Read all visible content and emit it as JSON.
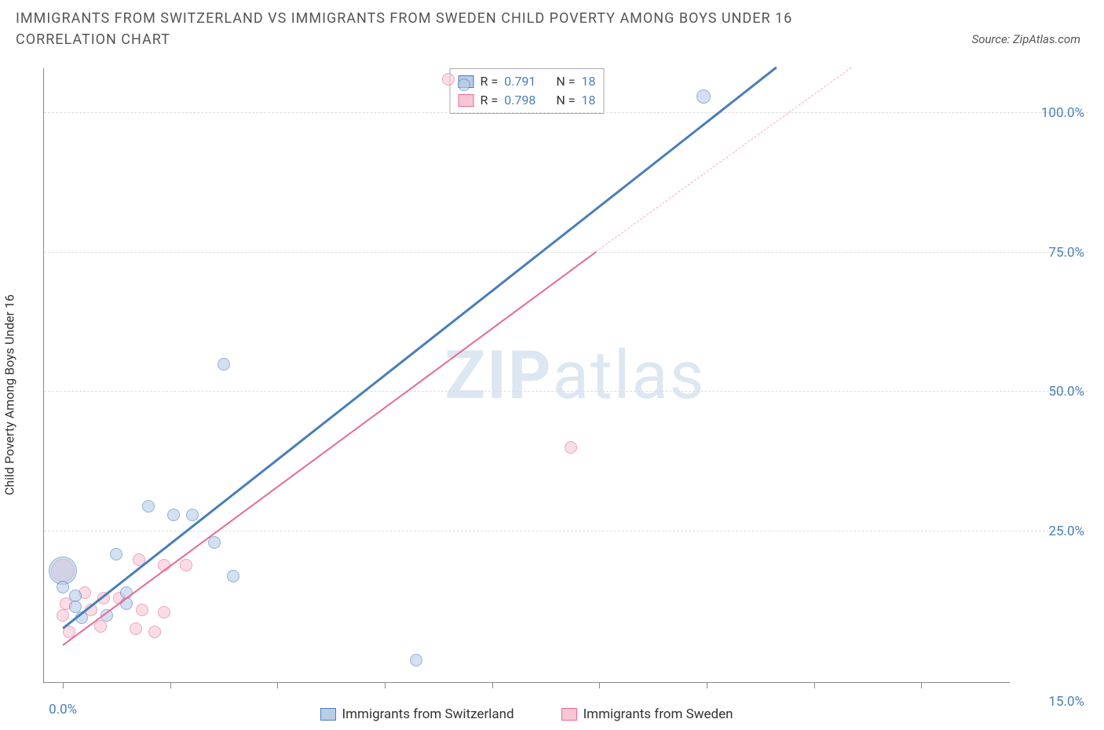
{
  "title": "IMMIGRANTS FROM SWITZERLAND VS IMMIGRANTS FROM SWEDEN CHILD POVERTY AMONG BOYS UNDER 16 CORRELATION CHART",
  "source": "Source: ZipAtlas.com",
  "yaxis_label": "Child Poverty Among Boys Under 16",
  "watermark": {
    "bold": "ZIP",
    "rest": "atlas"
  },
  "colors": {
    "blue_stroke": "#4a7ebb",
    "blue_fill": "#b8cde8",
    "pink_stroke": "#e86a92",
    "pink_fill": "#f7c6d4",
    "grid": "#dddddd",
    "axis": "#888888",
    "title_text": "#555555",
    "tick_text": "#4a7ebb",
    "bg": "#ffffff"
  },
  "chart": {
    "type": "scatter",
    "xlim": [
      -0.3,
      15.0
    ],
    "ylim": [
      -2,
      108
    ],
    "xtick_positions": [
      0.0,
      1.7,
      3.4,
      5.1,
      6.8,
      8.5,
      10.2,
      11.9,
      13.6
    ],
    "xtick_labels": [
      "0.0%",
      "",
      "",
      "",
      "",
      "",
      "",
      "",
      ""
    ],
    "xlabel_far_right": "15.0%",
    "ytick_positions": [
      25,
      50,
      75,
      100
    ],
    "ytick_labels": [
      "25.0%",
      "50.0%",
      "75.0%",
      "100.0%"
    ],
    "series": [
      {
        "name": "Immigrants from Switzerland",
        "color_stroke": "#4a7ebb",
        "color_fill": "#b8cde8",
        "marker_radius": 8,
        "stats": {
          "R": "0.791",
          "N": "18"
        },
        "trend": {
          "x1": 0.0,
          "y1": 7.5,
          "x2": 11.3,
          "y2": 108,
          "width": 2.5
        },
        "points": [
          {
            "x": 0.0,
            "y": 18,
            "r": 18
          },
          {
            "x": 0.0,
            "y": 15,
            "r": 8
          },
          {
            "x": 0.2,
            "y": 13.5,
            "r": 8
          },
          {
            "x": 0.2,
            "y": 11.5,
            "r": 8
          },
          {
            "x": 0.3,
            "y": 9.5,
            "r": 8
          },
          {
            "x": 0.7,
            "y": 10,
            "r": 8
          },
          {
            "x": 0.85,
            "y": 21,
            "r": 8
          },
          {
            "x": 1.0,
            "y": 12,
            "r": 8
          },
          {
            "x": 1.0,
            "y": 14,
            "r": 8
          },
          {
            "x": 1.35,
            "y": 29.5,
            "r": 8
          },
          {
            "x": 1.75,
            "y": 28,
            "r": 8
          },
          {
            "x": 2.05,
            "y": 28,
            "r": 8
          },
          {
            "x": 2.4,
            "y": 23,
            "r": 8
          },
          {
            "x": 2.7,
            "y": 17,
            "r": 8
          },
          {
            "x": 2.55,
            "y": 55,
            "r": 8
          },
          {
            "x": 5.6,
            "y": 2,
            "r": 8
          },
          {
            "x": 6.35,
            "y": 105,
            "r": 8
          },
          {
            "x": 10.15,
            "y": 103,
            "r": 9
          }
        ]
      },
      {
        "name": "Immigrants from Sweden",
        "color_stroke": "#e86a92",
        "color_fill": "#f7c6d4",
        "marker_radius": 8,
        "stats": {
          "R": "0.798",
          "N": "18"
        },
        "trend": {
          "x1": 0.0,
          "y1": 4.5,
          "x2": 8.45,
          "y2": 75,
          "width": 2.2
        },
        "trend_dash": {
          "x1": 8.45,
          "y1": 75,
          "x2": 12.5,
          "y2": 108
        },
        "points": [
          {
            "x": 0.0,
            "y": 18,
            "r": 15
          },
          {
            "x": 0.05,
            "y": 12,
            "r": 8
          },
          {
            "x": 0.0,
            "y": 10,
            "r": 8
          },
          {
            "x": 0.1,
            "y": 7,
            "r": 8
          },
          {
            "x": 0.35,
            "y": 14,
            "r": 8
          },
          {
            "x": 0.45,
            "y": 11,
            "r": 8
          },
          {
            "x": 0.6,
            "y": 8,
            "r": 8
          },
          {
            "x": 0.65,
            "y": 13,
            "r": 8
          },
          {
            "x": 0.9,
            "y": 13,
            "r": 8
          },
          {
            "x": 1.15,
            "y": 7.5,
            "r": 8
          },
          {
            "x": 1.2,
            "y": 20,
            "r": 8
          },
          {
            "x": 1.25,
            "y": 11,
            "r": 8
          },
          {
            "x": 1.45,
            "y": 7,
            "r": 8
          },
          {
            "x": 1.6,
            "y": 19,
            "r": 8
          },
          {
            "x": 1.6,
            "y": 10.5,
            "r": 8
          },
          {
            "x": 1.95,
            "y": 19,
            "r": 8
          },
          {
            "x": 6.1,
            "y": 106,
            "r": 8
          },
          {
            "x": 8.05,
            "y": 40,
            "r": 8
          }
        ]
      }
    ],
    "legend_bottom": [
      {
        "label": "Immigrants from Switzerland",
        "stroke": "#4a7ebb",
        "fill": "#b8cde8"
      },
      {
        "label": "Immigrants from Sweden",
        "stroke": "#e86a92",
        "fill": "#f7c6d4"
      }
    ]
  }
}
